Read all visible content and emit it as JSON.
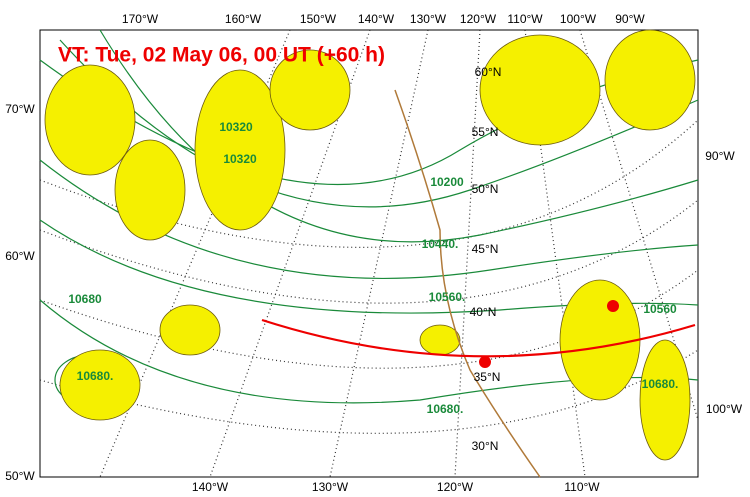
{
  "title": "VT:  Tue, 02 May 06, 00 UT (+60 h)",
  "top_labels": [
    "170°W",
    "160°W",
    "150°W",
    "140°W",
    "130°W",
    "120°W",
    "110°W",
    "100°W",
    "90°W"
  ],
  "left_labels": [
    "70°W",
    "60°W",
    "50°W"
  ],
  "right_labels": [
    "90°W",
    "100°W"
  ],
  "bottom_labels": [
    "140°W",
    "130°W",
    "120°W",
    "110°W"
  ],
  "lat_labels": [
    "60°N",
    "55°N",
    "50°N",
    "45°N",
    "40°N",
    "35°N",
    "30°N"
  ],
  "contour_labels": [
    "10320",
    "10200",
    "10440.",
    "10560.",
    "10680.",
    "10680",
    "10560",
    "10680.",
    "10680.",
    "10320"
  ]
}
